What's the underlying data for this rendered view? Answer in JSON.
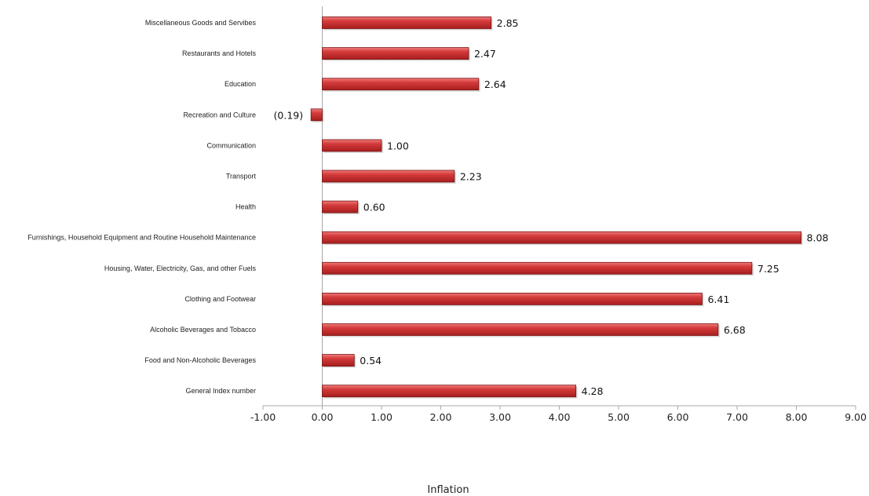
{
  "chart_data": {
    "type": "bar",
    "orientation": "horizontal",
    "categories": [
      "Miscellaneous Goods and Servibes",
      "Restaurants and Hotels",
      "Education",
      "Recreation and Culture",
      "Communication",
      "Transport",
      "Health",
      "Furnishings, Household Equipment and Routine Household Maintenance",
      "Housing, Water, Electricity, Gas, and other Fuels",
      "Clothing and Footwear",
      "Alcoholic Beverages and Tobacco",
      "Food and Non-Alcoholic Beverages",
      "General Index number"
    ],
    "values": [
      2.85,
      2.47,
      2.64,
      -0.19,
      1.0,
      2.23,
      0.6,
      8.08,
      7.25,
      6.41,
      6.68,
      0.54,
      4.28
    ],
    "value_labels": [
      "2.85",
      "2.47",
      "2.64",
      "(0.19)",
      "1.00",
      "2.23",
      "0.60",
      "8.08",
      "7.25",
      "6.41",
      "6.68",
      "0.54",
      "4.28"
    ],
    "xlim": [
      -1,
      9
    ],
    "x_ticks": [
      -1,
      0,
      1,
      2,
      3,
      4,
      5,
      6,
      7,
      8,
      9
    ],
    "x_tick_labels": [
      "-1.00",
      "0.00",
      "1.00",
      "2.00",
      "3.00",
      "4.00",
      "5.00",
      "6.00",
      "7.00",
      "8.00",
      "9.00"
    ],
    "xlabel": "Inflation",
    "title": "",
    "ylabel": "",
    "grid": false,
    "bar_color": "#d23a3a",
    "bar_edge_color": "#7a1212"
  }
}
